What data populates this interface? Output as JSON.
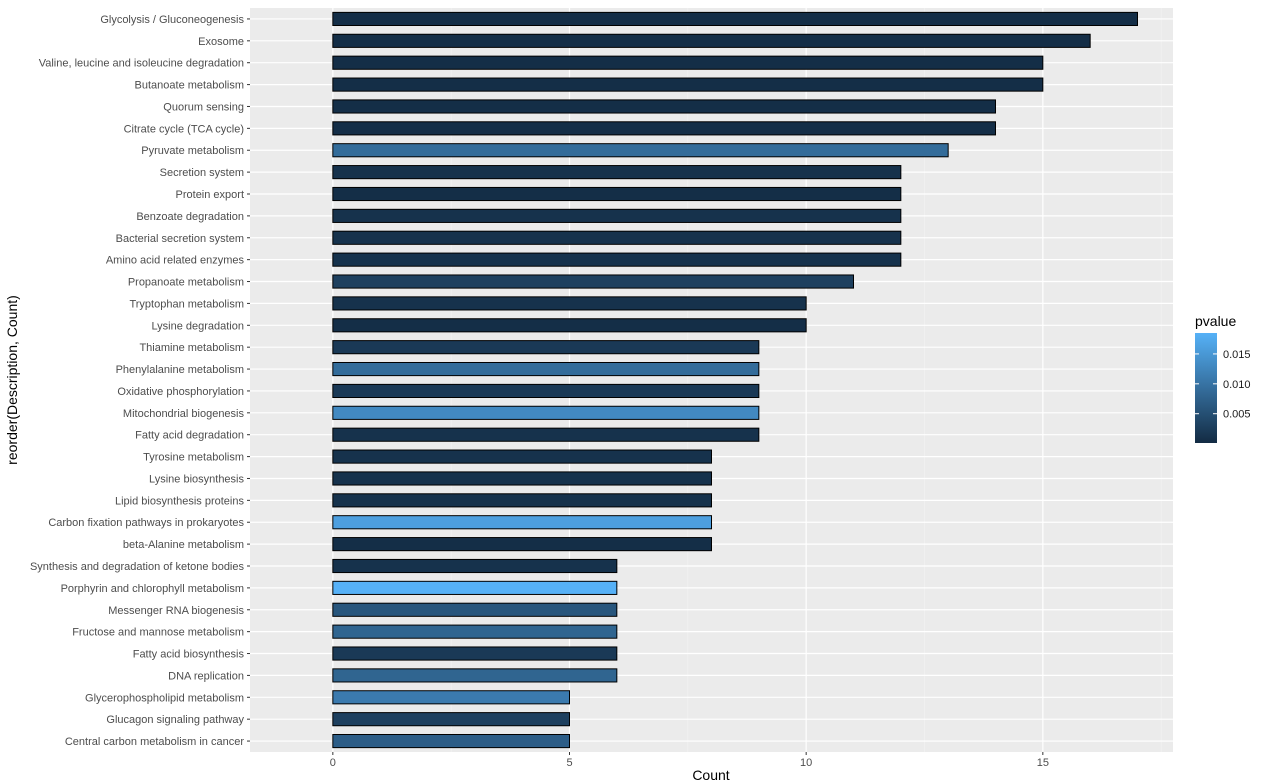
{
  "chart_data": {
    "type": "bar",
    "orientation": "horizontal",
    "xlabel": "Count",
    "ylabel": "reorder(Description, Count)",
    "xlim": [
      -1.75,
      17.75
    ],
    "x_ticks": [
      0,
      5,
      10,
      15
    ],
    "x_tick_labels": [
      "0",
      "5",
      "10",
      "15"
    ],
    "grid": true,
    "legend": {
      "title": "pvalue",
      "placement": "right",
      "type": "colorbar",
      "range": [
        0.0001,
        0.0185
      ],
      "ticks": [
        0.005,
        0.01,
        0.015
      ],
      "tick_labels": [
        "0.005",
        "0.010",
        "0.015"
      ],
      "low_color": "#132B43",
      "high_color": "#56B1F7"
    },
    "bar_outline_color": "#000000",
    "categories": [
      "Glycolysis / Gluconeogenesis",
      "Exosome",
      "Valine, leucine and isoleucine degradation",
      "Butanoate metabolism",
      "Quorum sensing",
      "Citrate cycle (TCA cycle)",
      "Pyruvate metabolism",
      "Secretion system",
      "Protein export",
      "Benzoate degradation",
      "Bacterial secretion system",
      "Amino acid related enzymes",
      "Propanoate metabolism",
      "Tryptophan metabolism",
      "Lysine degradation",
      "Thiamine metabolism",
      "Phenylalanine metabolism",
      "Oxidative phosphorylation",
      "Mitochondrial biogenesis",
      "Fatty acid degradation",
      "Tyrosine metabolism",
      "Lysine biosynthesis",
      "Lipid biosynthesis proteins",
      "Carbon fixation pathways in prokaryotes",
      "beta-Alanine metabolism",
      "Synthesis and degradation of ketone bodies",
      "Porphyrin and chlorophyll metabolism",
      "Messenger RNA biogenesis",
      "Fructose and mannose metabolism",
      "Fatty acid biosynthesis",
      "DNA replication",
      "Glycerophospholipid metabolism",
      "Glucagon signaling pathway",
      "Central carbon metabolism in cancer"
    ],
    "values": [
      17,
      16,
      15,
      15,
      14,
      14,
      13,
      12,
      12,
      12,
      12,
      12,
      11,
      10,
      10,
      9,
      9,
      9,
      9,
      9,
      8,
      8,
      8,
      8,
      8,
      6,
      6,
      6,
      6,
      6,
      6,
      5,
      5,
      5
    ],
    "pvalues": [
      0.0005,
      0.0005,
      0.0005,
      0.0005,
      0.0005,
      0.0005,
      0.009,
      0.001,
      0.0005,
      0.001,
      0.001,
      0.001,
      0.003,
      0.001,
      0.0005,
      0.002,
      0.009,
      0.002,
      0.013,
      0.001,
      0.001,
      0.001,
      0.001,
      0.016,
      0.0005,
      0.001,
      0.0185,
      0.006,
      0.008,
      0.002,
      0.008,
      0.011,
      0.003,
      0.007
    ]
  }
}
